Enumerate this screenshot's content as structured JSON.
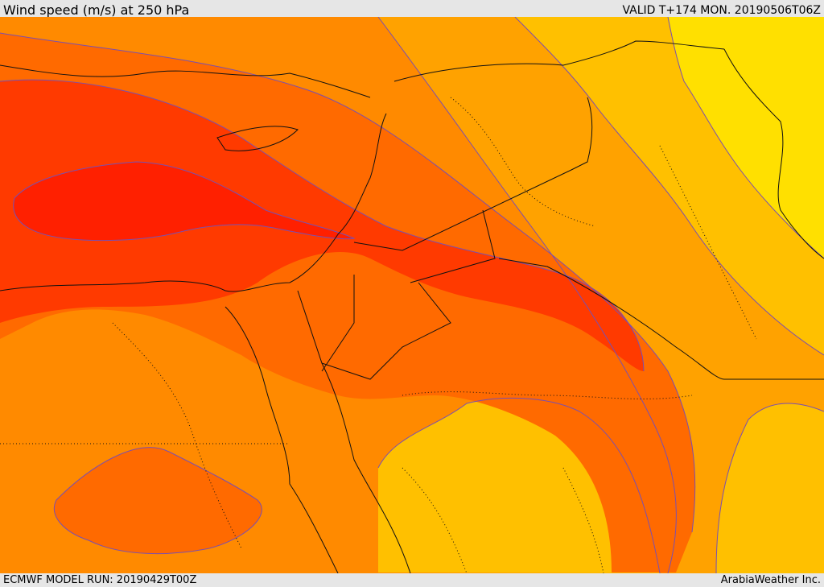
{
  "header": {
    "title": "Wind speed (m/s) at 250 hPa",
    "valid": "VALID T+174 MON. 20190506T06Z"
  },
  "footer": {
    "model_run": "ECMWF MODEL RUN: 20190429T00Z",
    "credit": "ArabiaWeather Inc."
  },
  "map": {
    "colors": {
      "ocean_land_base": "#ff8a00",
      "band_yellow": "#ffe000",
      "band_gold": "#ffc000",
      "band_orange": "#ffa200",
      "band_dark_orange": "#ff6a00",
      "band_red_orange": "#ff3a00",
      "band_red": "#ff2000",
      "contour": "#7a4fb0",
      "coast": "#111111"
    }
  }
}
